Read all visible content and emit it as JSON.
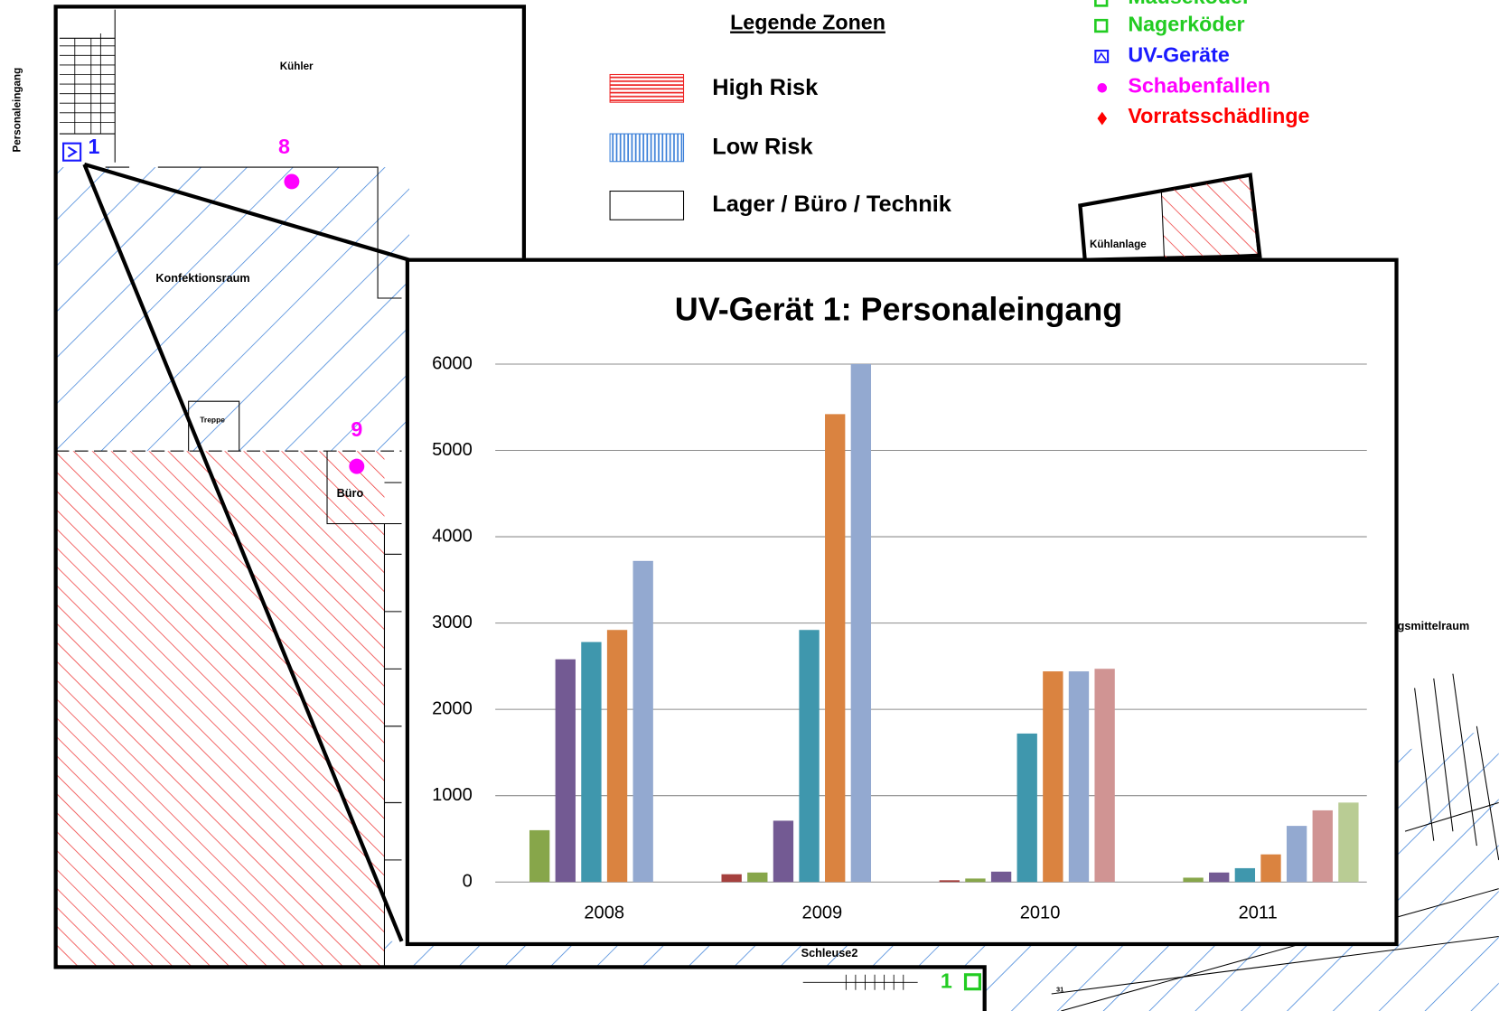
{
  "floor_plan": {
    "entrance": "Personaleingang",
    "rooms": [
      "Kühler",
      "Konfektionsraum",
      "Treppe",
      "Büro",
      "Kühlanlage",
      "gsmittelraum",
      "Schleuse2"
    ],
    "markers": [
      "1",
      "8",
      "9",
      "1",
      "31"
    ],
    "legend_zones": {
      "title": "Legende Zonen",
      "items": [
        "High Risk",
        "Low Risk",
        "Lager / Büro / Technik"
      ]
    },
    "legend_traps": [
      "Mäuseköder",
      "Nagerköder",
      "UV-Geräte",
      "Schabenfallen",
      "Vorratsschädlinge"
    ]
  },
  "chart_data": {
    "type": "bar",
    "title": "UV-Gerät 1: Personaleingang",
    "categories": [
      "2008",
      "2009",
      "2010",
      "2011"
    ],
    "series": [
      {
        "color": "#a5403e",
        "values": [
          null,
          90,
          20,
          null
        ]
      },
      {
        "color": "#87a64a",
        "values": [
          600,
          110,
          40,
          50
        ]
      },
      {
        "color": "#735a93",
        "values": [
          2580,
          710,
          120,
          110
        ]
      },
      {
        "color": "#3f97ad",
        "values": [
          2780,
          2920,
          1720,
          160
        ]
      },
      {
        "color": "#da8340",
        "values": [
          2920,
          5420,
          2440,
          320
        ]
      },
      {
        "color": "#93a9d0",
        "values": [
          3720,
          6000,
          2440,
          650
        ]
      },
      {
        "color": "#d09493",
        "values": [
          null,
          null,
          2470,
          830
        ]
      },
      {
        "color": "#b9cc94",
        "values": [
          null,
          null,
          null,
          920
        ]
      }
    ],
    "ylim": [
      0,
      6000
    ],
    "yticks": [
      0,
      1000,
      2000,
      3000,
      4000,
      5000,
      6000
    ],
    "grid": true
  }
}
